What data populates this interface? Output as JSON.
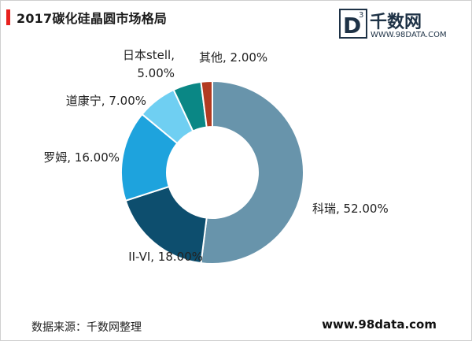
{
  "title": "2017碳化硅晶圆市场格局",
  "logo": {
    "brand": "千数网",
    "url": "WWW.98DATA.COM",
    "mark_letter": "D",
    "mark_sup": "3"
  },
  "source": "数据来源：千数网整理",
  "site": "www.98data.com",
  "colors": {
    "title_bar": "#e8211e",
    "logo_dark": "#1e3246",
    "slices": [
      "#6894ab",
      "#0d4e6e",
      "#1ea3dd",
      "#6fcff2",
      "#0a8785",
      "#b23b21"
    ]
  },
  "chart_data": {
    "type": "pie",
    "donut": true,
    "title": "2017碳化硅晶圆市场格局",
    "slices": [
      {
        "label": "科瑞",
        "value": 52.0,
        "text": "科瑞, 52.00%"
      },
      {
        "label": "II-VI",
        "value": 18.0,
        "text": "II-VI, 18.00%"
      },
      {
        "label": "罗姆",
        "value": 16.0,
        "text": "罗姆, 16.00%"
      },
      {
        "label": "道康宁",
        "value": 7.0,
        "text": "道康宁, 7.00%"
      },
      {
        "label": "日本stell",
        "value": 5.0,
        "text": "日本stell,\n5.00%"
      },
      {
        "label": "其他",
        "value": 2.0,
        "text": "其他, 2.00%"
      }
    ]
  }
}
